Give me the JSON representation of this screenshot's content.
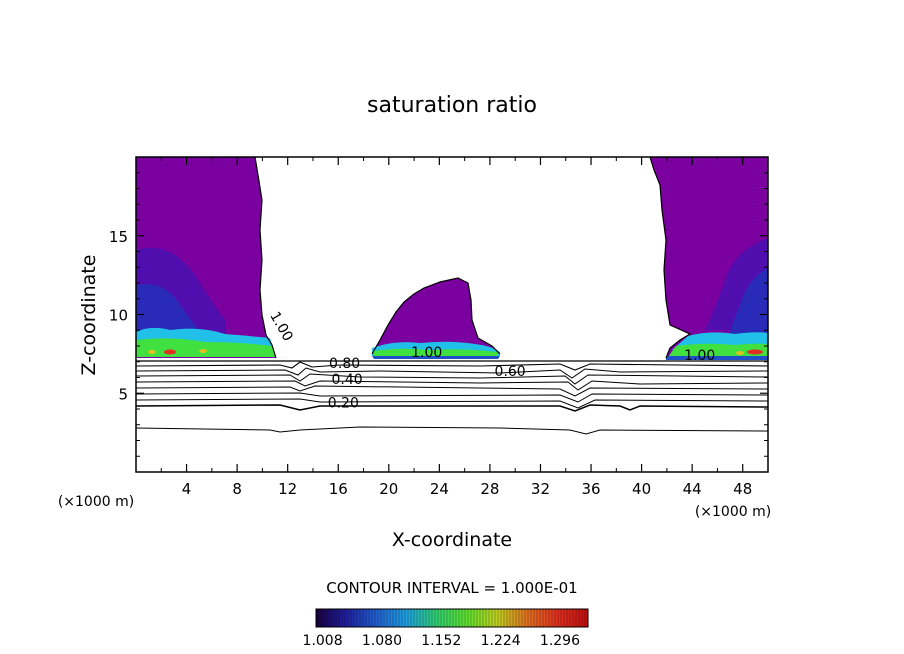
{
  "chart_data": {
    "type": "contour",
    "title": "saturation ratio",
    "xlabel": "X-coordinate",
    "ylabel": "Z-coordinate",
    "x_unit": "(×1000 m)",
    "z_unit": "(×1000 m)",
    "xlim": [
      0,
      50
    ],
    "ylim": [
      0,
      20
    ],
    "x_ticks": [
      4,
      8,
      12,
      16,
      20,
      24,
      28,
      32,
      36,
      40,
      44,
      48
    ],
    "y_ticks": [
      5,
      10,
      15
    ],
    "contour_interval_text": "CONTOUR INTERVAL = 1.000E-01",
    "contour_labels": [
      {
        "text": "1.00",
        "x": 11.2,
        "z": 9.1,
        "rotate": 60
      },
      {
        "text": "1.00",
        "x": 23.0,
        "z": 7.3,
        "rotate": 0
      },
      {
        "text": "1.00",
        "x": 44.6,
        "z": 7.1,
        "rotate": 0
      },
      {
        "text": "0.80",
        "x": 16.5,
        "z": 6.6,
        "rotate": 0
      },
      {
        "text": "0.60",
        "x": 29.6,
        "z": 6.1,
        "rotate": 0
      },
      {
        "text": "0.40",
        "x": 16.7,
        "z": 5.6,
        "rotate": 0
      },
      {
        "text": "0.20",
        "x": 16.4,
        "z": 4.1,
        "rotate": 0
      }
    ],
    "colorbar": {
      "labels": [
        "1.008",
        "1.080",
        "1.152",
        "1.224",
        "1.296"
      ],
      "range": [
        1.0,
        1.33
      ],
      "colors": [
        "#1a0040",
        "#2020a0",
        "#2060d0",
        "#20a0e0",
        "#30d070",
        "#60e030",
        "#c0d020",
        "#e07020",
        "#e03020",
        "#c01010"
      ]
    },
    "colors": {
      "purple": "#7a00a0",
      "blue": "#2050c8",
      "cyan": "#20c0e8",
      "green": "#40e040"
    }
  }
}
